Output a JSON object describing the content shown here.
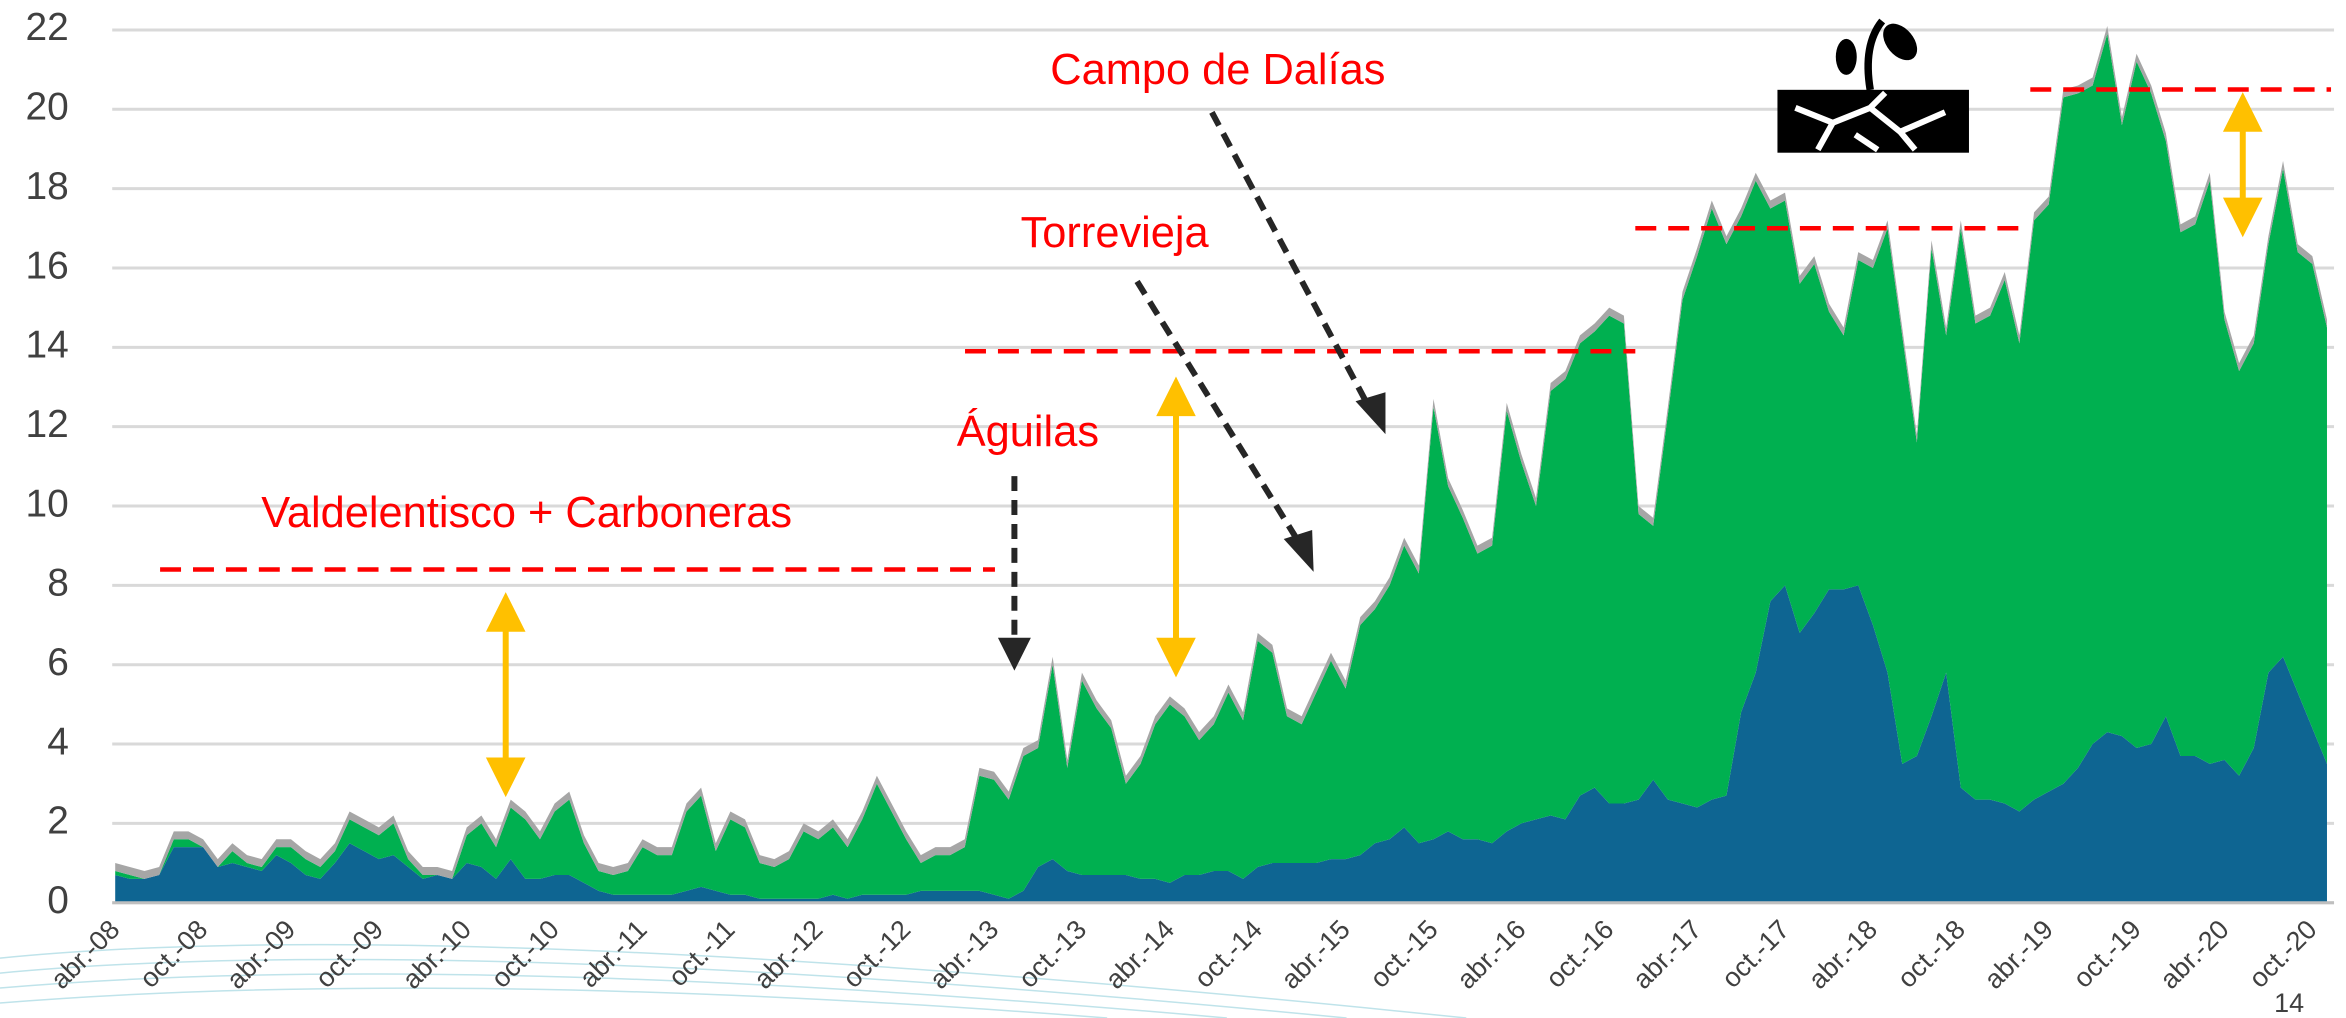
{
  "chart_data": {
    "type": "stacked_area",
    "categories": [
      "abr.-08",
      null,
      null,
      null,
      null,
      null,
      "oct.-08",
      null,
      null,
      null,
      null,
      null,
      "abr.-09",
      null,
      null,
      null,
      null,
      null,
      "oct.-09",
      null,
      null,
      null,
      null,
      null,
      "abr.-10",
      null,
      null,
      null,
      null,
      null,
      "oct.-10",
      null,
      null,
      null,
      null,
      null,
      "abr.-11",
      null,
      null,
      null,
      null,
      null,
      "oct.-11",
      null,
      null,
      null,
      null,
      null,
      "abr.-12",
      null,
      null,
      null,
      null,
      null,
      "oct.-12",
      null,
      null,
      null,
      null,
      null,
      "abr.-13",
      null,
      null,
      null,
      null,
      null,
      "oct.-13",
      null,
      null,
      null,
      null,
      null,
      "abr.-14",
      null,
      null,
      null,
      null,
      null,
      "oct.-14",
      null,
      null,
      null,
      null,
      null,
      "abr.-15",
      null,
      null,
      null,
      null,
      null,
      "oct.-15",
      null,
      null,
      null,
      null,
      null,
      "abr.-16",
      null,
      null,
      null,
      null,
      null,
      "oct.-16",
      null,
      null,
      null,
      null,
      null,
      "abr.-17",
      null,
      null,
      null,
      null,
      null,
      "oct.-17",
      null,
      null,
      null,
      null,
      null,
      "abr.-18",
      null,
      null,
      null,
      null,
      null,
      "oct.-18",
      null,
      null,
      null,
      null,
      null,
      "abr.-19",
      null,
      null,
      null,
      null,
      null,
      "oct.-19",
      null,
      null,
      null,
      null,
      null,
      "abr.-20",
      null,
      null,
      null,
      null,
      null,
      "oct.-20",
      null
    ],
    "series": [
      {
        "color": "#0e6592",
        "values": [
          0.7,
          0.6,
          0.6,
          0.7,
          1.4,
          1.4,
          1.4,
          0.9,
          1.0,
          0.9,
          0.8,
          1.2,
          1.0,
          0.7,
          0.6,
          1.0,
          1.5,
          1.3,
          1.1,
          1.2,
          0.9,
          0.6,
          0.7,
          0.6,
          1.0,
          0.9,
          0.6,
          1.1,
          0.6,
          0.6,
          0.7,
          0.7,
          0.5,
          0.3,
          0.2,
          0.2,
          0.2,
          0.2,
          0.2,
          0.3,
          0.4,
          0.3,
          0.2,
          0.2,
          0.1,
          0.1,
          0.1,
          0.1,
          0.1,
          0.2,
          0.1,
          0.2,
          0.2,
          0.2,
          0.2,
          0.3,
          0.3,
          0.3,
          0.3,
          0.3,
          0.2,
          0.1,
          0.3,
          0.9,
          1.1,
          0.8,
          0.7,
          0.7,
          0.7,
          0.7,
          0.6,
          0.6,
          0.5,
          0.7,
          0.7,
          0.8,
          0.8,
          0.6,
          0.9,
          1.0,
          1.0,
          1.0,
          1.0,
          1.1,
          1.1,
          1.2,
          1.5,
          1.6,
          1.9,
          1.5,
          1.6,
          1.8,
          1.6,
          1.6,
          1.5,
          1.8,
          2.0,
          2.1,
          2.2,
          2.1,
          2.7,
          2.9,
          2.5,
          2.5,
          2.6,
          3.1,
          2.6,
          2.5,
          2.4,
          2.6,
          2.7,
          4.8,
          5.8,
          7.6,
          8.0,
          6.8,
          7.3,
          7.9,
          7.9,
          8.0,
          7.0,
          5.8,
          3.5,
          3.7,
          4.7,
          5.8,
          2.9,
          2.6,
          2.6,
          2.5,
          2.3,
          2.6,
          2.8,
          3.0,
          3.4,
          4.0,
          4.3,
          4.2,
          3.9,
          4.0,
          4.7,
          3.7,
          3.7,
          3.5,
          3.6,
          3.2,
          3.9,
          5.8,
          6.2,
          5.3,
          4.4,
          3.5
        ]
      },
      {
        "color": "#00b050",
        "values": [
          0.1,
          0.1,
          0.0,
          0.0,
          0.2,
          0.2,
          0.0,
          0.0,
          0.3,
          0.1,
          0.1,
          0.2,
          0.4,
          0.4,
          0.3,
          0.3,
          0.6,
          0.6,
          0.6,
          0.8,
          0.2,
          0.1,
          0.0,
          0.0,
          0.7,
          1.1,
          0.8,
          1.3,
          1.5,
          1.0,
          1.6,
          1.9,
          1.0,
          0.5,
          0.5,
          0.6,
          1.2,
          1.0,
          1.0,
          2.0,
          2.3,
          1.0,
          1.9,
          1.7,
          0.9,
          0.8,
          1.0,
          1.7,
          1.5,
          1.7,
          1.3,
          1.9,
          2.8,
          2.1,
          1.4,
          0.7,
          0.9,
          0.9,
          1.1,
          2.9,
          2.9,
          2.5,
          3.4,
          3.0,
          4.9,
          2.6,
          4.9,
          4.2,
          3.7,
          2.3,
          2.9,
          3.9,
          4.5,
          4.0,
          3.4,
          3.7,
          4.5,
          4.0,
          5.7,
          5.3,
          3.7,
          3.5,
          4.3,
          5.0,
          4.3,
          5.8,
          5.9,
          6.4,
          7.1,
          6.8,
          10.9,
          8.7,
          8.1,
          7.2,
          7.5,
          10.6,
          9.1,
          7.9,
          10.7,
          11.1,
          11.4,
          11.5,
          12.3,
          12.1,
          7.2,
          6.4,
          9.7,
          12.7,
          13.9,
          14.9,
          13.9,
          12.5,
          12.4,
          9.9,
          9.7,
          8.8,
          8.8,
          7.0,
          6.4,
          8.2,
          9.0,
          11.2,
          10.8,
          7.9,
          11.8,
          8.5,
          14.1,
          12.0,
          12.2,
          13.2,
          11.8,
          14.6,
          14.8,
          17.3,
          17.0,
          16.6,
          17.6,
          15.4,
          17.3,
          16.4,
          14.5,
          13.2,
          13.4,
          14.7,
          11.1,
          10.2,
          10.2,
          10.8,
          12.3,
          11.1,
          11.7,
          11.0
        ]
      },
      {
        "color": "#a6a6a6",
        "values": [
          0.2,
          0.2,
          0.2,
          0.2,
          0.2,
          0.2,
          0.2,
          0.2,
          0.2,
          0.2,
          0.2,
          0.2,
          0.2,
          0.2,
          0.2,
          0.2,
          0.2,
          0.2,
          0.2,
          0.2,
          0.2,
          0.2,
          0.2,
          0.2,
          0.2,
          0.2,
          0.2,
          0.2,
          0.2,
          0.2,
          0.2,
          0.2,
          0.2,
          0.2,
          0.2,
          0.2,
          0.2,
          0.2,
          0.2,
          0.2,
          0.2,
          0.2,
          0.2,
          0.2,
          0.2,
          0.2,
          0.2,
          0.2,
          0.2,
          0.2,
          0.2,
          0.2,
          0.2,
          0.2,
          0.2,
          0.2,
          0.2,
          0.2,
          0.2,
          0.2,
          0.2,
          0.2,
          0.2,
          0.2,
          0.2,
          0.2,
          0.2,
          0.2,
          0.2,
          0.2,
          0.2,
          0.2,
          0.2,
          0.2,
          0.2,
          0.2,
          0.2,
          0.2,
          0.2,
          0.2,
          0.2,
          0.2,
          0.2,
          0.2,
          0.2,
          0.2,
          0.2,
          0.2,
          0.2,
          0.2,
          0.2,
          0.2,
          0.2,
          0.2,
          0.2,
          0.2,
          0.2,
          0.2,
          0.2,
          0.2,
          0.2,
          0.2,
          0.2,
          0.2,
          0.2,
          0.2,
          0.2,
          0.2,
          0.2,
          0.2,
          0.2,
          0.2,
          0.2,
          0.2,
          0.2,
          0.2,
          0.2,
          0.2,
          0.2,
          0.2,
          0.2,
          0.2,
          0.2,
          0.2,
          0.2,
          0.2,
          0.2,
          0.2,
          0.2,
          0.2,
          0.2,
          0.2,
          0.2,
          0.2,
          0.2,
          0.2,
          0.2,
          0.2,
          0.2,
          0.2,
          0.2,
          0.2,
          0.2,
          0.2,
          0.2,
          0.2,
          0.2,
          0.2,
          0.2,
          0.2,
          0.2,
          0.2
        ]
      }
    ],
    "ylim": [
      0,
      22
    ],
    "yticks": [
      0,
      2,
      4,
      6,
      8,
      10,
      12,
      14,
      16,
      18,
      20,
      22
    ],
    "grid": true,
    "reference_levels": [
      8.4,
      13.9,
      17.0,
      20.5
    ],
    "annotations": [
      "Campo de Dalías",
      "Torrevieja",
      "Águilas",
      "Valdelentisco + Carboneras"
    ],
    "page_number": "14"
  }
}
